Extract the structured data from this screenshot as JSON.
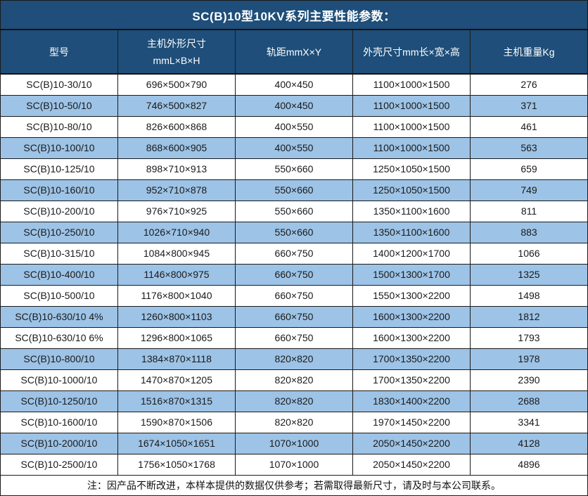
{
  "title": "SC(B)10型10KV系列主要性能参数：",
  "colors": {
    "header_bg": "#1E4E79",
    "header_text": "#FFFFFF",
    "row_bg": "#FFFFFF",
    "row_alt_bg": "#9DC3E6",
    "border": "#1A1A1A",
    "body_text": "#1A1A1A"
  },
  "table": {
    "columns": [
      {
        "label": "型号"
      },
      {
        "label": "主机外形尺寸",
        "sublabel": "mmL×B×H"
      },
      {
        "label": "轨距mmX×Y"
      },
      {
        "label": "外壳尺寸mm长×宽×高"
      },
      {
        "label": "主机重量Kg"
      }
    ],
    "rows": [
      [
        "SC(B)10-30/10",
        "696×500×790",
        "400×450",
        "1100×1000×1500",
        "276"
      ],
      [
        "SC(B)10-50/10",
        "746×500×827",
        "400×450",
        "1100×1000×1500",
        "371"
      ],
      [
        "SC(B)10-80/10",
        "826×600×868",
        "400×550",
        "1100×1000×1500",
        "461"
      ],
      [
        "SC(B)10-100/10",
        "868×600×905",
        "400×550",
        "1100×1000×1500",
        "563"
      ],
      [
        "SC(B)10-125/10",
        "898×710×913",
        "550×660",
        "1250×1050×1500",
        "659"
      ],
      [
        "SC(B)10-160/10",
        "952×710×878",
        "550×660",
        "1250×1050×1500",
        "749"
      ],
      [
        "SC(B)10-200/10",
        "976×710×925",
        "550×660",
        "1350×1100×1600",
        "811"
      ],
      [
        "SC(B)10-250/10",
        "1026×710×940",
        "550×660",
        "1350×1100×1600",
        "883"
      ],
      [
        "SC(B)10-315/10",
        "1084×800×945",
        "660×750",
        "1400×1200×1700",
        "1066"
      ],
      [
        "SC(B)10-400/10",
        "1146×800×975",
        "660×750",
        "1500×1300×1700",
        "1325"
      ],
      [
        "SC(B)10-500/10",
        "1176×800×1040",
        "660×750",
        "1550×1300×2200",
        "1498"
      ],
      [
        "SC(B)10-630/10 4%",
        "1260×800×1103",
        "660×750",
        "1600×1300×2200",
        "1812"
      ],
      [
        "SC(B)10-630/10 6%",
        "1296×800×1065",
        "660×750",
        "1600×1300×2200",
        "1793"
      ],
      [
        "SC(B)10-800/10",
        "1384×870×1118",
        "820×820",
        "1700×1350×2200",
        "1978"
      ],
      [
        "SC(B)10-1000/10",
        "1470×870×1205",
        "820×820",
        "1700×1350×2200",
        "2390"
      ],
      [
        "SC(B)10-1250/10",
        "1516×870×1315",
        "820×820",
        "1830×1400×2200",
        "2688"
      ],
      [
        "SC(B)10-1600/10",
        "1590×870×1506",
        "820×820",
        "1970×1450×2200",
        "3341"
      ],
      [
        "SC(B)10-2000/10",
        "1674×1050×1651",
        "1070×1000",
        "2050×1450×2200",
        "4128"
      ],
      [
        "SC(B)10-2500/10",
        "1756×1050×1768",
        "1070×1000",
        "2050×1450×2200",
        "4896"
      ]
    ]
  },
  "footer_note": "注：因产品不断改进，本样本提供的数据仅供参考；若需取得最新尺寸，请及时与本公司联系。"
}
